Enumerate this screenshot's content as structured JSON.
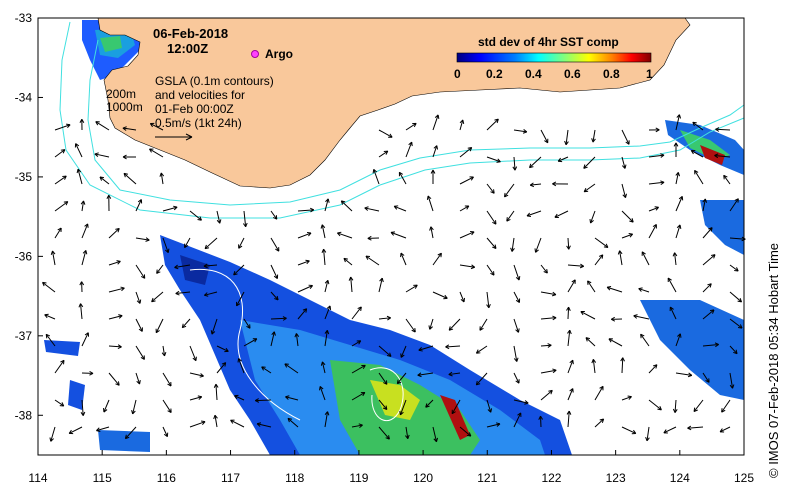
{
  "date": "06-Feb-2018",
  "time": "12:00Z",
  "argo_label": "Argo",
  "depth_labels": [
    "200m",
    "1000m"
  ],
  "gsla_lines": [
    "GSLA (0.1m contours)",
    "and velocities for",
    "01-Feb 00:00Z",
    "0.5m/s (1kt 24h)"
  ],
  "colorbar": {
    "title": "std dev of 4hr SST comp",
    "ticks": [
      "0",
      "0.2",
      "0.4",
      "0.6",
      "0.8",
      "1"
    ],
    "colors": [
      "#00007f",
      "#0000ff",
      "#007fff",
      "#00ffff",
      "#7fff7f",
      "#ffff00",
      "#ff7f00",
      "#ff0000",
      "#7f0000"
    ]
  },
  "credit": "© IMOS 07-Feb-2018 05:34 Hobart Time",
  "axes": {
    "x_ticks": [
      "114",
      "115",
      "116",
      "117",
      "118",
      "119",
      "120",
      "121",
      "122",
      "123",
      "124",
      "125"
    ],
    "y_ticks": [
      "-33",
      "-34",
      "-35",
      "-36",
      "-37",
      "-38"
    ],
    "lon_range": [
      114,
      125
    ],
    "lat_range": [
      -38.5,
      -33
    ]
  },
  "land_color": "#f9c89b",
  "isobath_color": "#40e0e0"
}
